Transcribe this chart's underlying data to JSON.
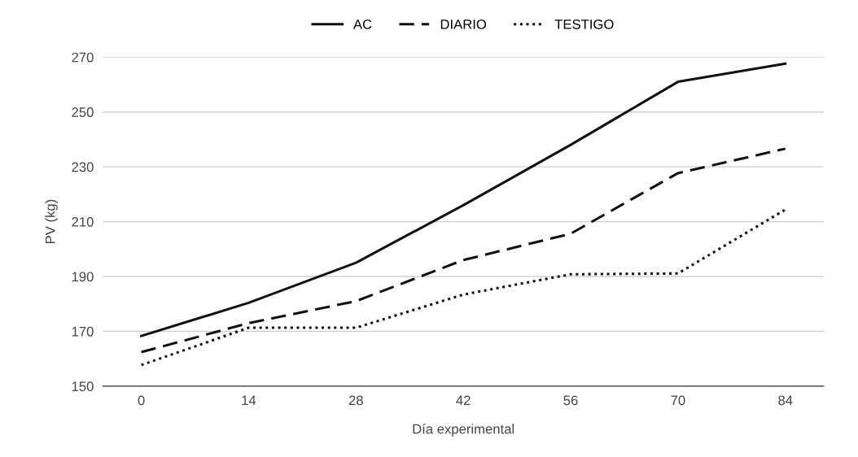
{
  "chart_data": {
    "type": "line",
    "xlabel": "Día experimental",
    "ylabel": "PV (kg)",
    "x": [
      0,
      14,
      28,
      42,
      56,
      70,
      84
    ],
    "series": [
      {
        "name": "AC",
        "color": "#111111",
        "line_style": "solid",
        "values": [
          168.3,
          180.4,
          195,
          216,
          238,
          261,
          267.6
        ]
      },
      {
        "name": "DIARIO",
        "color": "#111111",
        "line_style": "dashed",
        "values": [
          162.4,
          173,
          181,
          196,
          205.6,
          227.7,
          236.6
        ]
      },
      {
        "name": "TESTIGO",
        "color": "#111111",
        "line_style": "dotted",
        "values": [
          157.7,
          171.3,
          171.3,
          183.4,
          190.8,
          191.1,
          214.4
        ]
      }
    ],
    "xlim": [
      -5,
      89
    ],
    "xticks": [
      0,
      14,
      28,
      42,
      56,
      70,
      84
    ],
    "ylim": [
      150,
      270
    ],
    "yticks": [
      150,
      170,
      190,
      210,
      230,
      250,
      270
    ],
    "grid": "y",
    "legend": "top"
  }
}
